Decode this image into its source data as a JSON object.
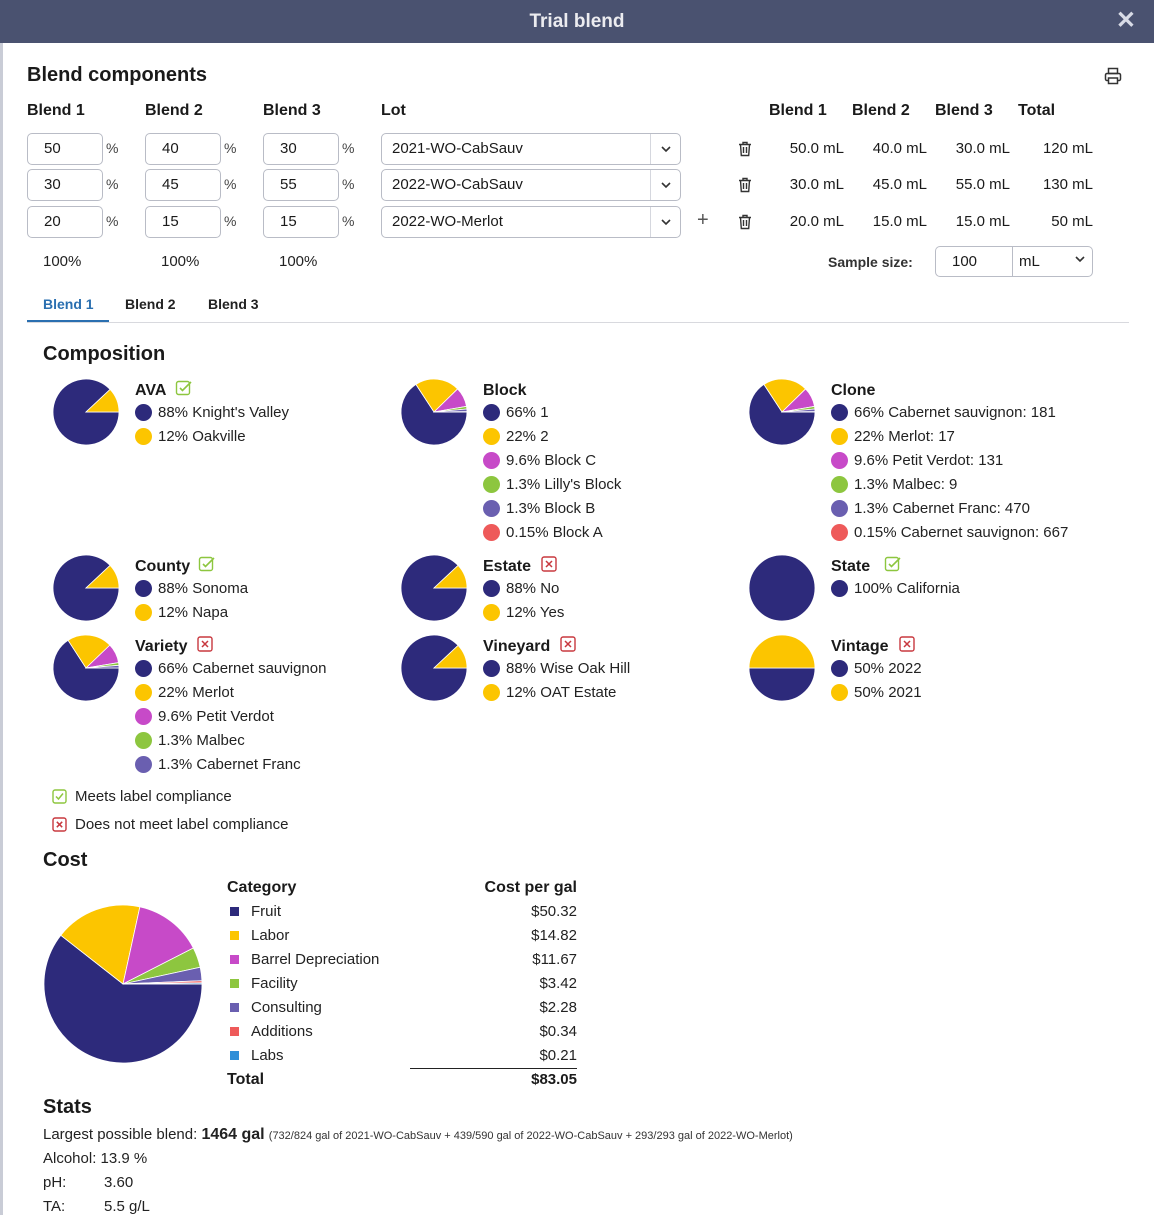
{
  "window": {
    "title": "Trial blend"
  },
  "components": {
    "heading": "Blend components",
    "col_headers": {
      "blend1": "Blend 1",
      "blend2": "Blend 2",
      "blend3": "Blend 3",
      "lot": "Lot"
    },
    "right_headers": {
      "blend1": "Blend 1",
      "blend2": "Blend 2",
      "blend3": "Blend 3",
      "total": "Total"
    },
    "pct_sign": "%",
    "rows": [
      {
        "b1": "50",
        "b2": "40",
        "b3": "30",
        "lot": "2021-WO-CabSauv",
        "ml1": "50.0 mL",
        "ml2": "40.0 mL",
        "ml3": "30.0 mL",
        "total": "120 mL"
      },
      {
        "b1": "30",
        "b2": "45",
        "b3": "55",
        "lot": "2022-WO-CabSauv",
        "ml1": "30.0 mL",
        "ml2": "45.0 mL",
        "ml3": "55.0 mL",
        "total": "130 mL"
      },
      {
        "b1": "20",
        "b2": "15",
        "b3": "15",
        "lot": "2022-WO-Merlot",
        "ml1": "20.0 mL",
        "ml2": "15.0 mL",
        "ml3": "15.0 mL",
        "total": "50 mL"
      }
    ],
    "sums": {
      "b1": "100%",
      "b2": "100%",
      "b3": "100%"
    },
    "sample_size": {
      "label": "Sample size:",
      "value": "100",
      "unit": "mL"
    }
  },
  "tabs": [
    "Blend 1",
    "Blend 2",
    "Blend 3"
  ],
  "active_tab": "Blend 1",
  "colors": {
    "navy": "#2d2a7b",
    "yellow": "#fcc500",
    "magenta": "#c74ac8",
    "green": "#8dc63f",
    "slate": "#6a5fb0",
    "red": "#ee5a5a",
    "blue": "#2f8fd8",
    "compliant": "#8dc63f",
    "noncompliant": "#c8383f",
    "accent": "#2a6fb0"
  },
  "composition": {
    "heading": "Composition",
    "groups": [
      {
        "title": "AVA",
        "compliant": true,
        "items": [
          {
            "label": "88% Knight's Valley",
            "value": 88,
            "color": "#2d2a7b"
          },
          {
            "label": "12% Oakville",
            "value": 12,
            "color": "#fcc500"
          }
        ]
      },
      {
        "title": "Block",
        "compliant": null,
        "items": [
          {
            "label": "66% 1",
            "value": 66,
            "color": "#2d2a7b"
          },
          {
            "label": "22% 2",
            "value": 22,
            "color": "#fcc500"
          },
          {
            "label": "9.6% Block C",
            "value": 9.6,
            "color": "#c74ac8"
          },
          {
            "label": "1.3% Lilly's Block",
            "value": 1.3,
            "color": "#8dc63f"
          },
          {
            "label": "1.3% Block B",
            "value": 1.3,
            "color": "#6a5fb0"
          },
          {
            "label": "0.15% Block A",
            "value": 0.15,
            "color": "#ee5a5a"
          }
        ]
      },
      {
        "title": "Clone",
        "compliant": null,
        "items": [
          {
            "label": "66% Cabernet sauvignon: 181",
            "value": 66,
            "color": "#2d2a7b"
          },
          {
            "label": "22% Merlot: 17",
            "value": 22,
            "color": "#fcc500"
          },
          {
            "label": "9.6% Petit Verdot: 131",
            "value": 9.6,
            "color": "#c74ac8"
          },
          {
            "label": "1.3% Malbec: 9",
            "value": 1.3,
            "color": "#8dc63f"
          },
          {
            "label": "1.3% Cabernet Franc: 470",
            "value": 1.3,
            "color": "#6a5fb0"
          },
          {
            "label": "0.15% Cabernet sauvignon: 667",
            "value": 0.15,
            "color": "#ee5a5a"
          }
        ]
      },
      {
        "title": "County",
        "compliant": true,
        "items": [
          {
            "label": "88% Sonoma",
            "value": 88,
            "color": "#2d2a7b"
          },
          {
            "label": "12% Napa",
            "value": 12,
            "color": "#fcc500"
          }
        ]
      },
      {
        "title": "Estate",
        "compliant": false,
        "items": [
          {
            "label": "88% No",
            "value": 88,
            "color": "#2d2a7b"
          },
          {
            "label": "12% Yes",
            "value": 12,
            "color": "#fcc500"
          }
        ]
      },
      {
        "title": "State",
        "compliant": true,
        "items": [
          {
            "label": "100% California",
            "value": 100,
            "color": "#2d2a7b"
          }
        ]
      },
      {
        "title": "Variety",
        "compliant": false,
        "items": [
          {
            "label": "66% Cabernet sauvignon",
            "value": 66,
            "color": "#2d2a7b"
          },
          {
            "label": "22% Merlot",
            "value": 22,
            "color": "#fcc500"
          },
          {
            "label": "9.6% Petit Verdot",
            "value": 9.6,
            "color": "#c74ac8"
          },
          {
            "label": "1.3% Malbec",
            "value": 1.3,
            "color": "#8dc63f"
          },
          {
            "label": "1.3% Cabernet Franc",
            "value": 1.3,
            "color": "#6a5fb0"
          }
        ]
      },
      {
        "title": "Vineyard",
        "compliant": false,
        "items": [
          {
            "label": "88% Wise Oak Hill",
            "value": 88,
            "color": "#2d2a7b"
          },
          {
            "label": "12% OAT Estate",
            "value": 12,
            "color": "#fcc500"
          }
        ]
      },
      {
        "title": "Vintage",
        "compliant": false,
        "items": [
          {
            "label": "50% 2022",
            "value": 50,
            "color": "#2d2a7b"
          },
          {
            "label": "50% 2021",
            "value": 50,
            "color": "#fcc500"
          }
        ]
      }
    ],
    "legend": {
      "meets": "Meets label compliance",
      "not_meets": "Does not meet label compliance"
    }
  },
  "cost": {
    "heading": "Cost",
    "col_category": "Category",
    "col_cost": "Cost per gal",
    "rows": [
      {
        "category": "Fruit",
        "cost": "$50.32",
        "value": 50.32,
        "color": "#2d2a7b"
      },
      {
        "category": "Labor",
        "cost": "$14.82",
        "value": 14.82,
        "color": "#fcc500"
      },
      {
        "category": "Barrel Depreciation",
        "cost": "$11.67",
        "value": 11.67,
        "color": "#c74ac8"
      },
      {
        "category": "Facility",
        "cost": "$3.42",
        "value": 3.42,
        "color": "#8dc63f"
      },
      {
        "category": "Consulting",
        "cost": "$2.28",
        "value": 2.28,
        "color": "#6a5fb0"
      },
      {
        "category": "Additions",
        "cost": "$0.34",
        "value": 0.34,
        "color": "#ee5a5a"
      },
      {
        "category": "Labs",
        "cost": "$0.21",
        "value": 0.21,
        "color": "#2f8fd8"
      }
    ],
    "total_label": "Total",
    "total_value": "$83.05"
  },
  "chart_data": {
    "type": "pie",
    "categories": [
      "Fruit",
      "Labor",
      "Barrel Depreciation",
      "Facility",
      "Consulting",
      "Additions",
      "Labs"
    ],
    "values": [
      50.32,
      14.82,
      11.67,
      3.42,
      2.28,
      0.34,
      0.21
    ],
    "legend": "right"
  },
  "stats": {
    "heading": "Stats",
    "largest_label": "Largest possible blend:",
    "largest_value": "1464 gal",
    "largest_detail": "(732/824 gal of 2021-WO-CabSauv + 439/590 gal of 2022-WO-CabSauv + 293/293 gal of 2022-WO-Merlot)",
    "alcohol": "Alcohol: 13.9 %",
    "ph_label": "pH:",
    "ph_value": "3.60",
    "ta_label": "TA:",
    "ta_value": "5.5 g/L"
  }
}
